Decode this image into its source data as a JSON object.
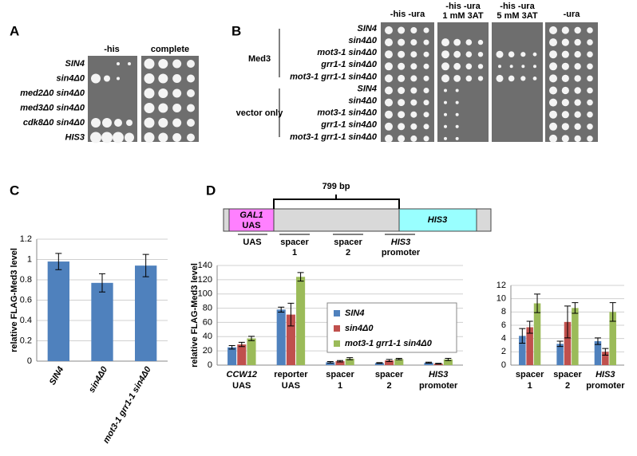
{
  "panel_labels": [
    "A",
    "B",
    "C",
    "D"
  ],
  "panel_a": {
    "columns": [
      "-his",
      "complete"
    ],
    "rows": [
      "SIN4",
      "sin4Δ0",
      "med2Δ0 sin4Δ0",
      "med3Δ0 sin4Δ0",
      "cdk8Δ0 sin4Δ0",
      "HIS3"
    ]
  },
  "panel_b": {
    "columns": [
      [
        "-his -ura"
      ],
      [
        "-his -ura",
        "1 mM 3AT"
      ],
      [
        "-his -ura",
        "5 mM 3AT"
      ],
      [
        "-ura"
      ]
    ],
    "groups": [
      "Med3",
      "vector only"
    ],
    "rows": [
      "SIN4",
      "sin4Δ0",
      "mot3-1 sin4Δ0",
      "grr1-1 sin4Δ0",
      "mot3-1 grr1-1 sin4Δ0",
      "SIN4",
      "sin4Δ0",
      "mot3-1 sin4Δ0",
      "grr1-1 sin4Δ0",
      "mot3-1 grr1-1 sin4Δ0"
    ]
  },
  "panel_d_diagram": {
    "length": "799 bp",
    "boxes": [
      "GAL1",
      "UAS",
      "HIS3"
    ],
    "regions": [
      [
        "UAS"
      ],
      [
        "spacer",
        "1"
      ],
      [
        "spacer",
        "2"
      ],
      [
        "HIS3",
        "promoter"
      ]
    ]
  },
  "chart_data": [
    {
      "type": "bar",
      "y_label": "relative FLAG-Med3 level",
      "categories": [
        "SIN4",
        "sin4Δ0",
        "mot3-1 grr1-1 sin4Δ0"
      ],
      "values": [
        0.98,
        0.77,
        0.94
      ],
      "errors": [
        0.08,
        0.09,
        0.11
      ],
      "color": "#4f81bd",
      "ylim": [
        0,
        1.2
      ],
      "yticks": [
        0,
        0.2,
        0.4,
        0.6,
        0.8,
        1,
        1.2
      ],
      "grid": true
    },
    {
      "type": "bar",
      "y_label": "relative FLAG-Med3 level",
      "categories": [
        [
          "CCW12",
          "UAS"
        ],
        [
          "reporter",
          "UAS"
        ],
        [
          "spacer",
          "1"
        ],
        [
          "spacer",
          "2"
        ],
        [
          "HIS3",
          "promoter"
        ]
      ],
      "series": [
        {
          "name": "SIN4",
          "color": "#4f81bd",
          "values": [
            25,
            78,
            4,
            3,
            3.5
          ],
          "errors": [
            2.5,
            3.5,
            1,
            0.5,
            0.7
          ]
        },
        {
          "name": "sin4Δ0",
          "color": "#c0504d",
          "values": [
            29,
            71,
            5.5,
            6.5,
            2
          ],
          "errors": [
            3,
            16,
            1,
            1.5,
            0.5
          ]
        },
        {
          "name": "mot3-1 grr1-1 sin4Δ0",
          "color": "#9bbb59",
          "values": [
            37.5,
            124,
            9,
            8.5,
            8
          ],
          "errors": [
            3,
            6,
            1.5,
            1,
            1.5
          ]
        }
      ],
      "ylim": [
        0,
        140
      ],
      "yticks": [
        0,
        20,
        40,
        60,
        80,
        100,
        120,
        140
      ],
      "grid": true,
      "legend": "center"
    },
    {
      "type": "bar",
      "categories": [
        [
          "spacer",
          "1"
        ],
        [
          "spacer",
          "2"
        ],
        [
          "HIS3",
          "promoter"
        ]
      ],
      "series": [
        {
          "color": "#4f81bd",
          "values": [
            4.4,
            3.2,
            3.6
          ],
          "errors": [
            1.1,
            0.4,
            0.5
          ]
        },
        {
          "color": "#c0504d",
          "values": [
            5.7,
            6.5,
            2
          ],
          "errors": [
            0.9,
            2.4,
            0.5
          ]
        },
        {
          "color": "#9bbb59",
          "values": [
            9.3,
            8.6,
            8
          ],
          "errors": [
            1.4,
            0.8,
            1.4
          ]
        }
      ],
      "ylim": [
        0,
        12
      ],
      "yticks": [
        0,
        2,
        4,
        6,
        8,
        10,
        12
      ],
      "grid": true
    }
  ]
}
